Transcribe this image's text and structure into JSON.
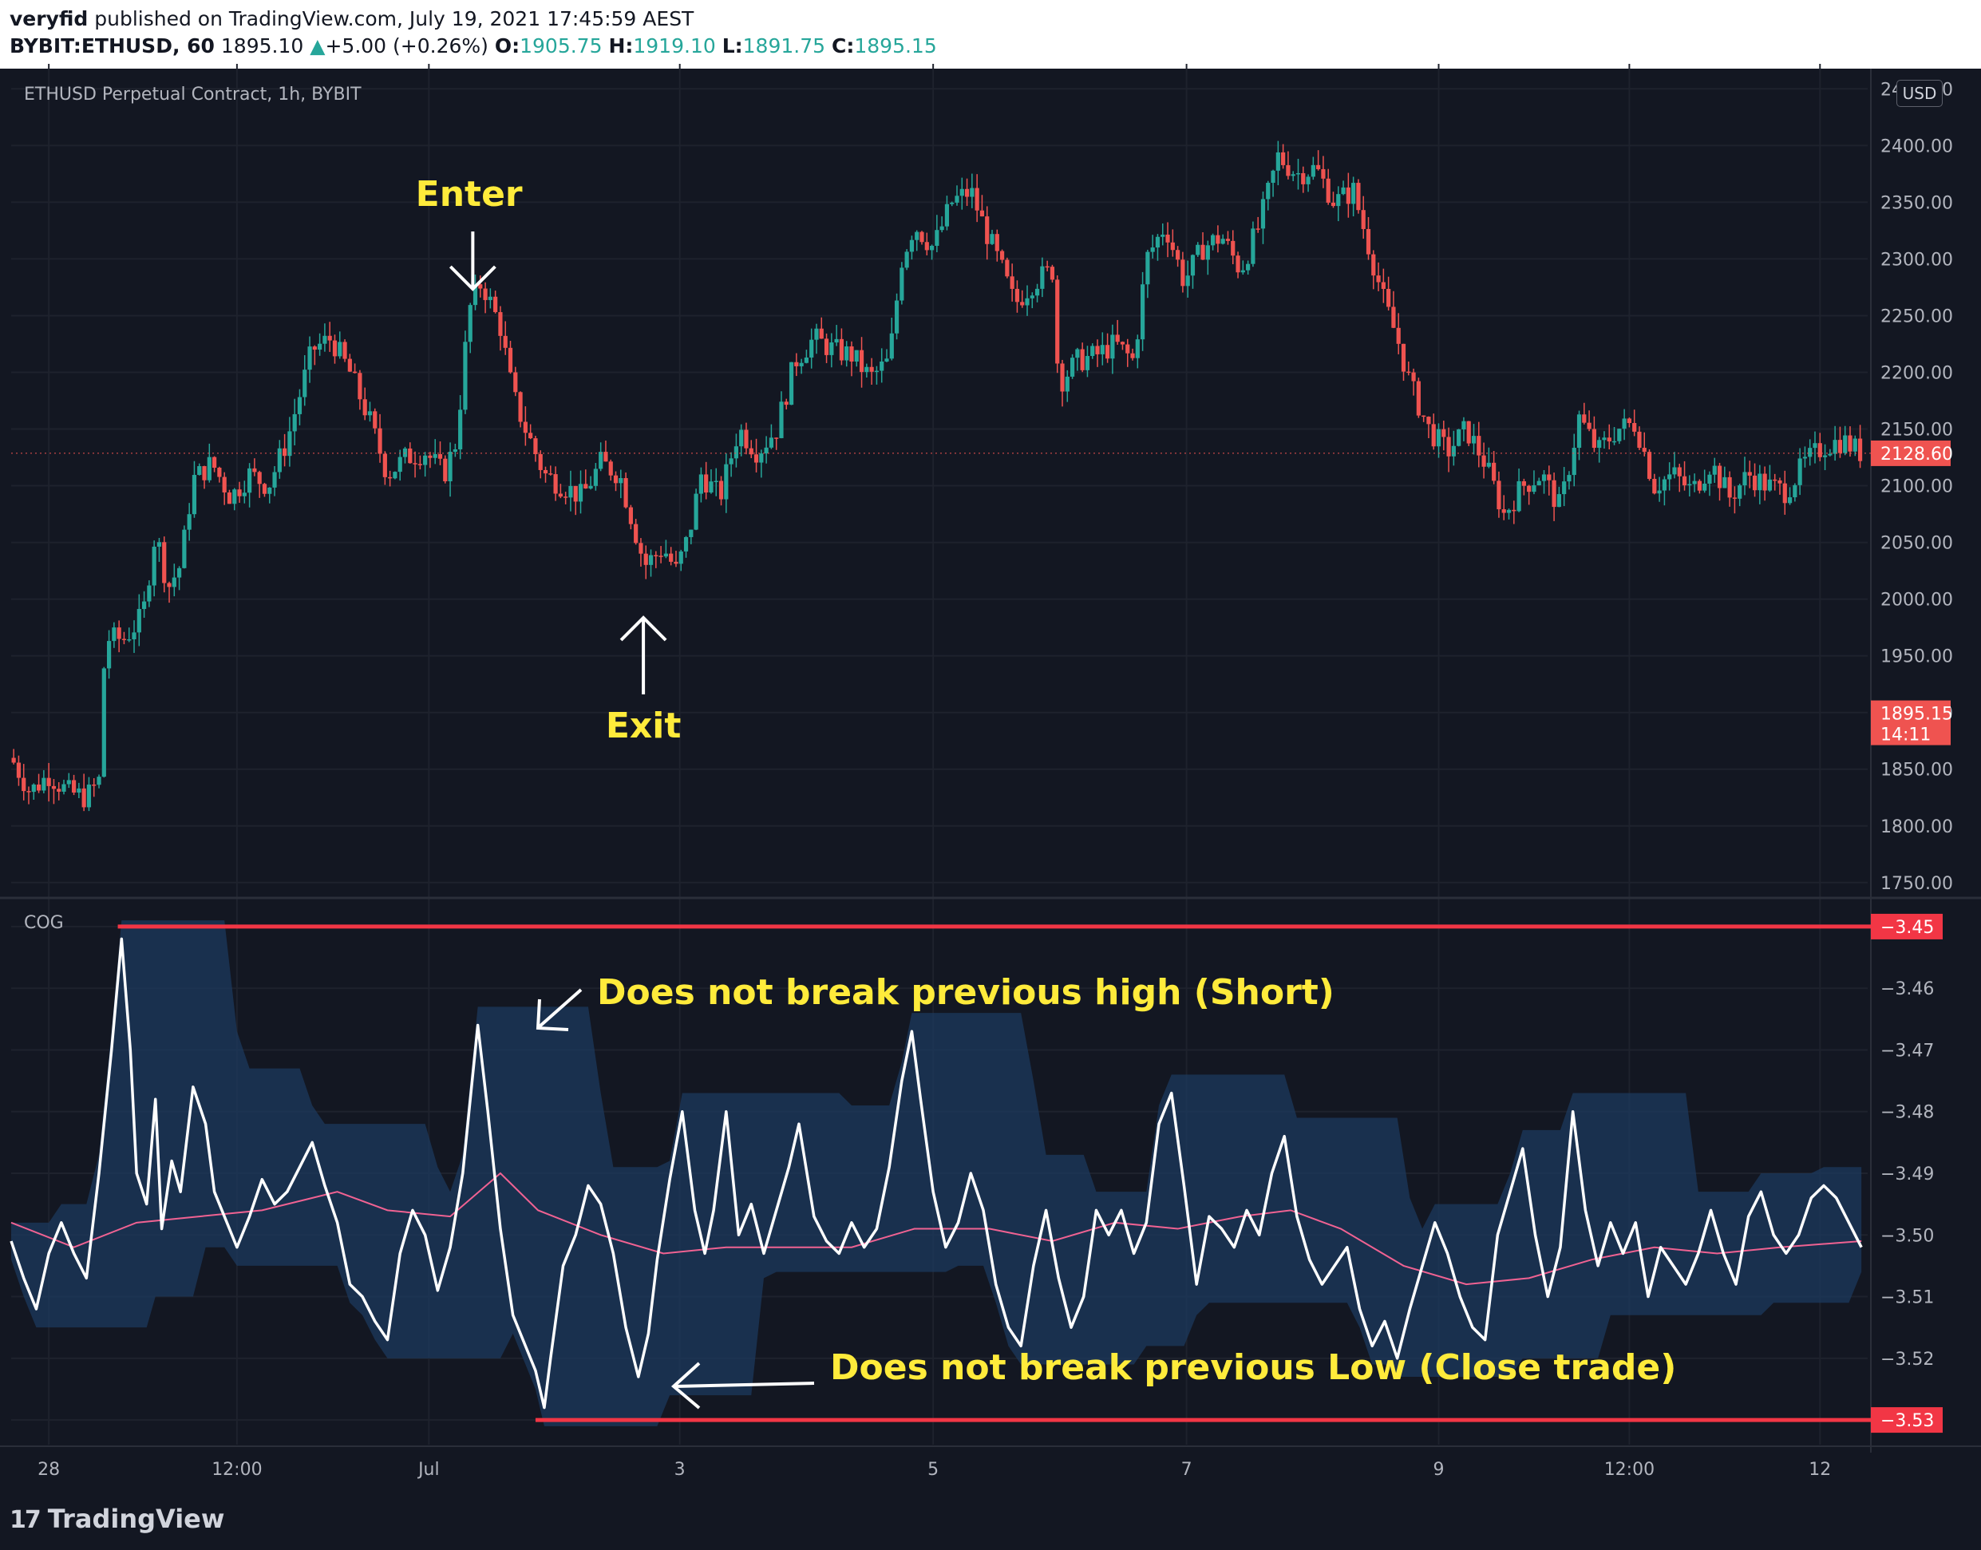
{
  "header": {
    "publisher": "veryfid",
    "published_text": "published on TradingView.com, July 19, 2021 17:45:59 AEST",
    "symbol": "BYBIT:ETHUSD, 60",
    "last": "1895.10",
    "change_arrow": "▲",
    "change": "+5.00 (+0.26%)",
    "o_label": "O:",
    "o": "1905.75",
    "h_label": "H:",
    "h": "1919.10",
    "l_label": "L:",
    "l": "1891.75",
    "c_label": "C:",
    "c": "1895.15"
  },
  "price_panel": {
    "title": "ETHUSD Perpetual Contract, 1h, BYBIT",
    "currency": "USD",
    "last_price_label": "1895.15",
    "countdown": "14:11",
    "right_label": "2128.60",
    "annotations": {
      "enter": "Enter",
      "exit": "Exit"
    }
  },
  "cog_panel": {
    "title": "COG",
    "high_label": "−3.45",
    "low_label": "−3.53",
    "annotations": {
      "short": "Does not break previous high (Short)",
      "close": "Does not break previous Low (Close trade)"
    }
  },
  "x_axis": {
    "labels": [
      "28",
      "12:00",
      "Jul",
      "3",
      "5",
      "7",
      "9",
      "12:00",
      "12"
    ]
  },
  "footer": {
    "logo_text": "TradingView"
  },
  "colors": {
    "background": "#131722",
    "up": "#26a69a",
    "down": "#ef5350",
    "annotation": "#ffeb3b",
    "cog_line": "#ffffff",
    "signal_line": "#f06292",
    "band_fill": "#1c3a5e",
    "level_line": "#f23645"
  },
  "chart_data": [
    {
      "type": "candlestick",
      "title": "ETHUSD Perpetual Contract, 1h, BYBIT",
      "y_ticks": [
        1750,
        1800,
        1850,
        1900,
        1950,
        2000,
        2050,
        2100,
        2150,
        2200,
        2250,
        2300,
        2350,
        2400,
        2450
      ],
      "ylim": [
        1740,
        2465
      ],
      "ohlc_close_path": [
        {
          "x": 0,
          "close": 1860
        },
        {
          "x": 15,
          "close": 1830
        },
        {
          "x": 30,
          "close": 1845
        },
        {
          "x": 45,
          "close": 1830
        },
        {
          "x": 60,
          "close": 1825
        },
        {
          "x": 70,
          "close": 1840
        },
        {
          "x": 75,
          "close": 1965
        },
        {
          "x": 90,
          "close": 1965
        },
        {
          "x": 105,
          "close": 1985
        },
        {
          "x": 115,
          "close": 2060
        },
        {
          "x": 125,
          "close": 2010
        },
        {
          "x": 135,
          "close": 2030
        },
        {
          "x": 145,
          "close": 2105
        },
        {
          "x": 160,
          "close": 2120
        },
        {
          "x": 175,
          "close": 2090
        },
        {
          "x": 190,
          "close": 2110
        },
        {
          "x": 205,
          "close": 2100
        },
        {
          "x": 220,
          "close": 2140
        },
        {
          "x": 240,
          "close": 2220
        },
        {
          "x": 255,
          "close": 2230
        },
        {
          "x": 270,
          "close": 2200
        },
        {
          "x": 285,
          "close": 2160
        },
        {
          "x": 300,
          "close": 2110
        },
        {
          "x": 315,
          "close": 2125
        },
        {
          "x": 330,
          "close": 2130
        },
        {
          "x": 345,
          "close": 2110
        },
        {
          "x": 355,
          "close": 2140
        },
        {
          "x": 365,
          "close": 2255
        },
        {
          "x": 375,
          "close": 2280
        },
        {
          "x": 390,
          "close": 2240
        },
        {
          "x": 400,
          "close": 2180
        },
        {
          "x": 410,
          "close": 2150
        },
        {
          "x": 425,
          "close": 2110
        },
        {
          "x": 440,
          "close": 2100
        },
        {
          "x": 455,
          "close": 2090
        },
        {
          "x": 470,
          "close": 2120
        },
        {
          "x": 485,
          "close": 2110
        },
        {
          "x": 495,
          "close": 2070
        },
        {
          "x": 505,
          "close": 2030
        },
        {
          "x": 520,
          "close": 2045
        },
        {
          "x": 530,
          "close": 2025
        },
        {
          "x": 540,
          "close": 2055
        },
        {
          "x": 550,
          "close": 2110
        },
        {
          "x": 565,
          "close": 2090
        },
        {
          "x": 580,
          "close": 2150
        },
        {
          "x": 595,
          "close": 2130
        },
        {
          "x": 610,
          "close": 2150
        },
        {
          "x": 625,
          "close": 2210
        },
        {
          "x": 640,
          "close": 2230
        },
        {
          "x": 655,
          "close": 2220
        },
        {
          "x": 670,
          "close": 2215
        },
        {
          "x": 685,
          "close": 2195
        },
        {
          "x": 700,
          "close": 2210
        },
        {
          "x": 710,
          "close": 2300
        },
        {
          "x": 720,
          "close": 2330
        },
        {
          "x": 735,
          "close": 2310
        },
        {
          "x": 750,
          "close": 2350
        },
        {
          "x": 765,
          "close": 2360
        },
        {
          "x": 775,
          "close": 2330
        },
        {
          "x": 790,
          "close": 2290
        },
        {
          "x": 800,
          "close": 2260
        },
        {
          "x": 815,
          "close": 2280
        },
        {
          "x": 830,
          "close": 2290
        },
        {
          "x": 835,
          "close": 2190
        },
        {
          "x": 850,
          "close": 2210
        },
        {
          "x": 865,
          "close": 2215
        },
        {
          "x": 880,
          "close": 2225
        },
        {
          "x": 895,
          "close": 2210
        },
        {
          "x": 905,
          "close": 2300
        },
        {
          "x": 920,
          "close": 2330
        },
        {
          "x": 935,
          "close": 2280
        },
        {
          "x": 950,
          "close": 2310
        },
        {
          "x": 965,
          "close": 2320
        },
        {
          "x": 980,
          "close": 2290
        },
        {
          "x": 995,
          "close": 2330
        },
        {
          "x": 1010,
          "close": 2390
        },
        {
          "x": 1025,
          "close": 2375
        },
        {
          "x": 1040,
          "close": 2380
        },
        {
          "x": 1055,
          "close": 2350
        },
        {
          "x": 1070,
          "close": 2360
        },
        {
          "x": 1080,
          "close": 2320
        },
        {
          "x": 1095,
          "close": 2260
        },
        {
          "x": 1105,
          "close": 2230
        },
        {
          "x": 1115,
          "close": 2190
        },
        {
          "x": 1130,
          "close": 2150
        },
        {
          "x": 1145,
          "close": 2130
        },
        {
          "x": 1160,
          "close": 2150
        },
        {
          "x": 1175,
          "close": 2120
        },
        {
          "x": 1190,
          "close": 2075
        },
        {
          "x": 1205,
          "close": 2100
        },
        {
          "x": 1220,
          "close": 2110
        },
        {
          "x": 1235,
          "close": 2080
        },
        {
          "x": 1250,
          "close": 2160
        },
        {
          "x": 1265,
          "close": 2130
        },
        {
          "x": 1280,
          "close": 2150
        },
        {
          "x": 1295,
          "close": 2155
        },
        {
          "x": 1310,
          "close": 2100
        },
        {
          "x": 1325,
          "close": 2110
        },
        {
          "x": 1340,
          "close": 2095
        },
        {
          "x": 1355,
          "close": 2120
        },
        {
          "x": 1370,
          "close": 2090
        },
        {
          "x": 1385,
          "close": 2110
        },
        {
          "x": 1400,
          "close": 2100
        },
        {
          "x": 1415,
          "close": 2095
        },
        {
          "x": 1430,
          "close": 2120
        },
        {
          "x": 1445,
          "close": 2135
        },
        {
          "x": 1460,
          "close": 2140
        },
        {
          "x": 1475,
          "close": 2128.6
        }
      ]
    },
    {
      "type": "line",
      "title": "COG",
      "y_ticks": [
        -3.53,
        -3.52,
        -3.51,
        -3.5,
        -3.49,
        -3.48,
        -3.47,
        -3.46,
        -3.45
      ],
      "ylim": [
        -3.534,
        -3.446
      ],
      "series": [
        {
          "name": "",
          "x": [
            0,
            10,
            20,
            30,
            40,
            50,
            60,
            70,
            80,
            88,
            95,
            100,
            108,
            115,
            120,
            128,
            135,
            145,
            155,
            162,
            170,
            180,
            190,
            200,
            210,
            220,
            230,
            240,
            250,
            260,
            270,
            280,
            290,
            300,
            310,
            320,
            330,
            340,
            350,
            360,
            372,
            380,
            390,
            400,
            410,
            418,
            425,
            430,
            440,
            450,
            460,
            470,
            480,
            490,
            500,
            508,
            515,
            525,
            535,
            545,
            553,
            560,
            570,
            580,
            590,
            600,
            610,
            620,
            628,
            640,
            650,
            660,
            670,
            680,
            690,
            700,
            710,
            718,
            725,
            735,
            745,
            755,
            765,
            775,
            785,
            795,
            805,
            815,
            825,
            835,
            845,
            855,
            865,
            875,
            885,
            895,
            905,
            915,
            925,
            935,
            945,
            955,
            965,
            975,
            985,
            995,
            1005,
            1015,
            1025,
            1035,
            1045,
            1055,
            1065,
            1075,
            1085,
            1095,
            1105,
            1115,
            1125,
            1135,
            1145,
            1155,
            1165,
            1175,
            1185,
            1195,
            1205,
            1215,
            1225,
            1235,
            1245,
            1255,
            1265,
            1275,
            1285,
            1295,
            1305,
            1315,
            1325,
            1335,
            1345,
            1355,
            1365,
            1375,
            1385,
            1395,
            1405,
            1415,
            1425,
            1435,
            1445,
            1455,
            1465,
            1475
          ],
          "values": [
            -3.501,
            -3.507,
            -3.512,
            -3.503,
            -3.498,
            -3.503,
            -3.507,
            -3.49,
            -3.47,
            -3.452,
            -3.47,
            -3.49,
            -3.495,
            -3.478,
            -3.499,
            -3.488,
            -3.493,
            -3.476,
            -3.482,
            -3.493,
            -3.497,
            -3.502,
            -3.497,
            -3.491,
            -3.495,
            -3.493,
            -3.489,
            -3.485,
            -3.492,
            -3.498,
            -3.508,
            -3.51,
            -3.514,
            -3.517,
            -3.503,
            -3.496,
            -3.5,
            -3.509,
            -3.502,
            -3.49,
            -3.466,
            -3.48,
            -3.499,
            -3.513,
            -3.518,
            -3.522,
            -3.528,
            -3.52,
            -3.505,
            -3.5,
            -3.492,
            -3.495,
            -3.503,
            -3.515,
            -3.523,
            -3.516,
            -3.504,
            -3.491,
            -3.48,
            -3.496,
            -3.503,
            -3.496,
            -3.48,
            -3.5,
            -3.495,
            -3.503,
            -3.496,
            -3.489,
            -3.482,
            -3.497,
            -3.501,
            -3.503,
            -3.498,
            -3.502,
            -3.499,
            -3.489,
            -3.475,
            -3.467,
            -3.478,
            -3.493,
            -3.502,
            -3.498,
            -3.49,
            -3.496,
            -3.508,
            -3.515,
            -3.518,
            -3.505,
            -3.496,
            -3.507,
            -3.515,
            -3.51,
            -3.496,
            -3.5,
            -3.496,
            -3.503,
            -3.498,
            -3.482,
            -3.477,
            -3.492,
            -3.508,
            -3.497,
            -3.499,
            -3.502,
            -3.496,
            -3.5,
            -3.49,
            -3.484,
            -3.497,
            -3.504,
            -3.508,
            -3.505,
            -3.502,
            -3.512,
            -3.518,
            -3.514,
            -3.52,
            -3.512,
            -3.505,
            -3.498,
            -3.503,
            -3.51,
            -3.515,
            -3.517,
            -3.5,
            -3.493,
            -3.486,
            -3.5,
            -3.51,
            -3.502,
            -3.48,
            -3.496,
            -3.505,
            -3.498,
            -3.503,
            -3.498,
            -3.51,
            -3.502,
            -3.505,
            -3.508,
            -3.503,
            -3.496,
            -3.503,
            -3.508,
            -3.497,
            -3.493,
            -3.5,
            -3.503,
            -3.5,
            -3.494,
            -3.492,
            -3.494,
            -3.498,
            -3.502
          ]
        },
        {
          "name": "",
          "x": [
            0,
            50,
            100,
            150,
            200,
            260,
            300,
            350,
            390,
            420,
            470,
            520,
            570,
            620,
            670,
            720,
            780,
            830,
            880,
            930,
            980,
            1020,
            1060,
            1110,
            1160,
            1210,
            1260,
            1310,
            1360,
            1410,
            1475
          ],
          "values": [
            -3.498,
            -3.502,
            -3.498,
            -3.497,
            -3.496,
            -3.493,
            -3.496,
            -3.497,
            -3.49,
            -3.496,
            -3.5,
            -3.503,
            -3.502,
            -3.502,
            -3.502,
            -3.499,
            -3.499,
            -3.501,
            -3.498,
            -3.499,
            -3.497,
            -3.496,
            -3.499,
            -3.505,
            -3.508,
            -3.507,
            -3.504,
            -3.502,
            -3.503,
            -3.502,
            -3.501
          ]
        }
      ],
      "reference_levels": [
        -3.45,
        -3.53
      ]
    }
  ]
}
